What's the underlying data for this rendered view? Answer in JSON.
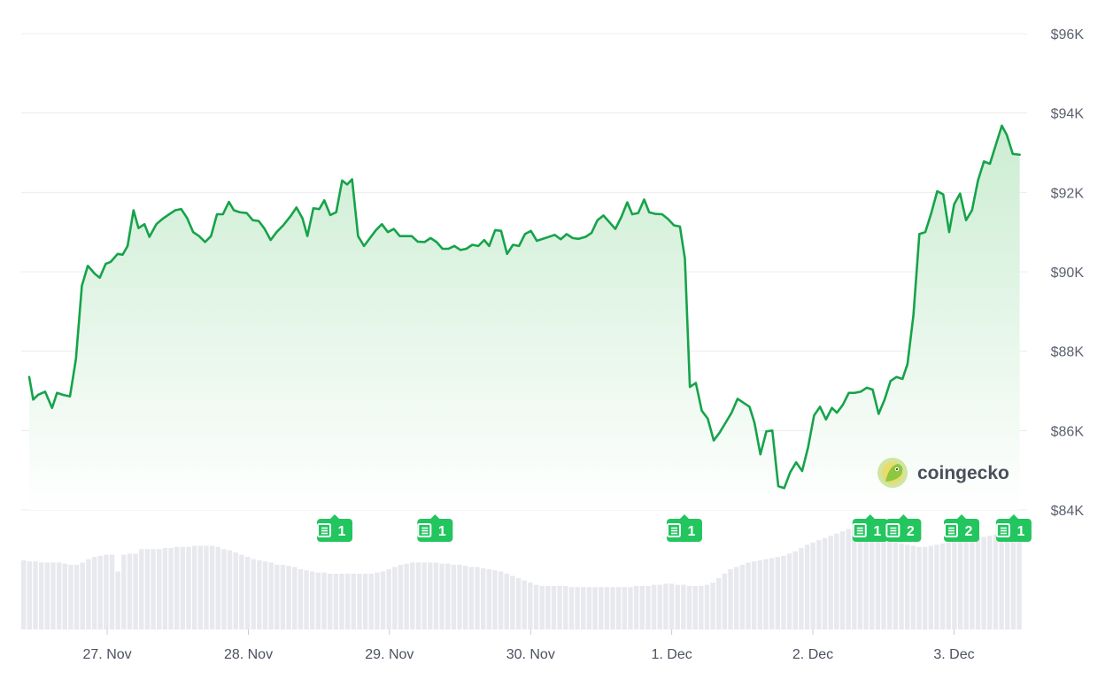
{
  "colors": {
    "line": "#16a34a",
    "area_top": "#c9ecd0",
    "area_bottom": "#ffffff",
    "grid": "#e9ecef",
    "volume": "#e8e9ee",
    "badge": "#22c55e",
    "tick_text": "#5b616e"
  },
  "brand": {
    "name": "coingecko",
    "icon": "gecko-logo-icon"
  },
  "chart_data": {
    "type": "area",
    "title": "",
    "xlabel": "",
    "ylabel": "",
    "x_range": [
      0,
      1
    ],
    "ylim": [
      84000,
      96000
    ],
    "grid": true,
    "y_ticks": [
      {
        "value": 96000,
        "label": "$96K"
      },
      {
        "value": 94000,
        "label": "$94K"
      },
      {
        "value": 92000,
        "label": "$92K"
      },
      {
        "value": 90000,
        "label": "$90K"
      },
      {
        "value": 88000,
        "label": "$88K"
      },
      {
        "value": 86000,
        "label": "$86K"
      },
      {
        "value": 84000,
        "label": "$84K"
      }
    ],
    "x_ticks": [
      {
        "pos": 0.0785,
        "label": "27. Nov"
      },
      {
        "pos": 0.2206,
        "label": "28. Nov"
      },
      {
        "pos": 0.3626,
        "label": "29. Nov"
      },
      {
        "pos": 0.5047,
        "label": "30. Nov"
      },
      {
        "pos": 0.6467,
        "label": "1. Dec"
      },
      {
        "pos": 0.7888,
        "label": "2. Dec"
      },
      {
        "pos": 0.9309,
        "label": "3. Dec"
      }
    ],
    "series": [
      {
        "values": [
          [
            0.0,
            87350
          ],
          [
            0.004,
            86780
          ],
          [
            0.009,
            86900
          ],
          [
            0.016,
            86980
          ],
          [
            0.023,
            86570
          ],
          [
            0.028,
            86950
          ],
          [
            0.034,
            86900
          ],
          [
            0.041,
            86860
          ],
          [
            0.047,
            87800
          ],
          [
            0.053,
            89650
          ],
          [
            0.059,
            90150
          ],
          [
            0.066,
            89950
          ],
          [
            0.071,
            89850
          ],
          [
            0.077,
            90200
          ],
          [
            0.082,
            90250
          ],
          [
            0.089,
            90450
          ],
          [
            0.094,
            90430
          ],
          [
            0.099,
            90650
          ],
          [
            0.105,
            91550
          ],
          [
            0.11,
            91100
          ],
          [
            0.116,
            91200
          ],
          [
            0.121,
            90880
          ],
          [
            0.128,
            91200
          ],
          [
            0.134,
            91330
          ],
          [
            0.141,
            91450
          ],
          [
            0.147,
            91550
          ],
          [
            0.153,
            91580
          ],
          [
            0.159,
            91350
          ],
          [
            0.165,
            91000
          ],
          [
            0.171,
            90900
          ],
          [
            0.177,
            90750
          ],
          [
            0.183,
            90900
          ],
          [
            0.189,
            91450
          ],
          [
            0.195,
            91450
          ],
          [
            0.201,
            91760
          ],
          [
            0.206,
            91550
          ],
          [
            0.212,
            91500
          ],
          [
            0.219,
            91480
          ],
          [
            0.225,
            91300
          ],
          [
            0.231,
            91280
          ],
          [
            0.237,
            91080
          ],
          [
            0.243,
            90800
          ],
          [
            0.249,
            91000
          ],
          [
            0.256,
            91180
          ],
          [
            0.263,
            91400
          ],
          [
            0.269,
            91620
          ],
          [
            0.275,
            91350
          ],
          [
            0.28,
            90900
          ],
          [
            0.286,
            91600
          ],
          [
            0.292,
            91580
          ],
          [
            0.297,
            91800
          ],
          [
            0.303,
            91430
          ],
          [
            0.309,
            91500
          ],
          [
            0.315,
            92300
          ],
          [
            0.32,
            92200
          ],
          [
            0.325,
            92330
          ],
          [
            0.331,
            90900
          ],
          [
            0.337,
            90650
          ],
          [
            0.343,
            90850
          ],
          [
            0.349,
            91050
          ],
          [
            0.355,
            91200
          ],
          [
            0.361,
            91000
          ],
          [
            0.367,
            91080
          ],
          [
            0.373,
            90900
          ],
          [
            0.379,
            90900
          ],
          [
            0.385,
            90900
          ],
          [
            0.391,
            90760
          ],
          [
            0.398,
            90750
          ],
          [
            0.404,
            90850
          ],
          [
            0.41,
            90750
          ],
          [
            0.416,
            90580
          ],
          [
            0.422,
            90580
          ],
          [
            0.428,
            90650
          ],
          [
            0.434,
            90550
          ],
          [
            0.44,
            90580
          ],
          [
            0.446,
            90680
          ],
          [
            0.452,
            90650
          ],
          [
            0.458,
            90800
          ],
          [
            0.463,
            90650
          ],
          [
            0.469,
            91050
          ],
          [
            0.475,
            91030
          ],
          [
            0.481,
            90450
          ],
          [
            0.487,
            90680
          ],
          [
            0.493,
            90650
          ],
          [
            0.499,
            90950
          ],
          [
            0.505,
            91030
          ],
          [
            0.511,
            90780
          ],
          [
            0.517,
            90830
          ],
          [
            0.523,
            90880
          ],
          [
            0.529,
            90930
          ],
          [
            0.535,
            90820
          ],
          [
            0.541,
            90950
          ],
          [
            0.547,
            90850
          ],
          [
            0.553,
            90830
          ],
          [
            0.56,
            90880
          ],
          [
            0.566,
            90980
          ],
          [
            0.572,
            91300
          ],
          [
            0.578,
            91420
          ],
          [
            0.584,
            91250
          ],
          [
            0.59,
            91080
          ],
          [
            0.596,
            91380
          ],
          [
            0.602,
            91750
          ],
          [
            0.607,
            91450
          ],
          [
            0.613,
            91480
          ],
          [
            0.619,
            91820
          ],
          [
            0.624,
            91500
          ],
          [
            0.63,
            91460
          ],
          [
            0.637,
            91450
          ],
          [
            0.643,
            91330
          ],
          [
            0.649,
            91170
          ],
          [
            0.655,
            91140
          ],
          [
            0.66,
            90330
          ],
          [
            0.665,
            87100
          ],
          [
            0.671,
            87200
          ],
          [
            0.677,
            86500
          ],
          [
            0.683,
            86300
          ],
          [
            0.689,
            85750
          ],
          [
            0.695,
            85950
          ],
          [
            0.701,
            86200
          ],
          [
            0.707,
            86450
          ],
          [
            0.713,
            86800
          ],
          [
            0.719,
            86700
          ],
          [
            0.725,
            86600
          ],
          [
            0.73,
            86200
          ],
          [
            0.736,
            85400
          ],
          [
            0.742,
            85980
          ],
          [
            0.748,
            86000
          ],
          [
            0.754,
            84600
          ],
          [
            0.76,
            84550
          ],
          [
            0.766,
            84950
          ],
          [
            0.772,
            85200
          ],
          [
            0.778,
            84980
          ],
          [
            0.784,
            85580
          ],
          [
            0.79,
            86380
          ],
          [
            0.796,
            86600
          ],
          [
            0.802,
            86280
          ],
          [
            0.808,
            86570
          ],
          [
            0.813,
            86450
          ],
          [
            0.819,
            86650
          ],
          [
            0.825,
            86950
          ],
          [
            0.831,
            86950
          ],
          [
            0.837,
            86980
          ],
          [
            0.843,
            87080
          ],
          [
            0.849,
            87030
          ],
          [
            0.855,
            86420
          ],
          [
            0.861,
            86780
          ],
          [
            0.867,
            87250
          ],
          [
            0.873,
            87350
          ],
          [
            0.879,
            87300
          ],
          [
            0.884,
            87670
          ],
          [
            0.89,
            88900
          ],
          [
            0.896,
            90950
          ],
          [
            0.902,
            91000
          ],
          [
            0.908,
            91480
          ],
          [
            0.914,
            92030
          ],
          [
            0.92,
            91950
          ],
          [
            0.926,
            91000
          ],
          [
            0.931,
            91700
          ],
          [
            0.937,
            91970
          ],
          [
            0.943,
            91300
          ],
          [
            0.949,
            91550
          ],
          [
            0.955,
            92300
          ],
          [
            0.961,
            92780
          ],
          [
            0.967,
            92720
          ],
          [
            0.973,
            93200
          ],
          [
            0.979,
            93680
          ],
          [
            0.984,
            93450
          ],
          [
            0.99,
            92970
          ],
          [
            0.997,
            92950
          ]
        ]
      }
    ],
    "volume": [
      0.62,
      0.61,
      0.61,
      0.6,
      0.6,
      0.6,
      0.6,
      0.59,
      0.58,
      0.58,
      0.6,
      0.63,
      0.65,
      0.66,
      0.67,
      0.67,
      0.52,
      0.67,
      0.68,
      0.68,
      0.72,
      0.72,
      0.72,
      0.72,
      0.73,
      0.73,
      0.74,
      0.74,
      0.74,
      0.75,
      0.75,
      0.75,
      0.75,
      0.74,
      0.72,
      0.71,
      0.69,
      0.67,
      0.65,
      0.63,
      0.62,
      0.61,
      0.6,
      0.58,
      0.58,
      0.57,
      0.56,
      0.54,
      0.53,
      0.52,
      0.51,
      0.51,
      0.5,
      0.5,
      0.5,
      0.5,
      0.5,
      0.5,
      0.5,
      0.5,
      0.51,
      0.52,
      0.54,
      0.56,
      0.58,
      0.59,
      0.6,
      0.6,
      0.6,
      0.6,
      0.6,
      0.59,
      0.59,
      0.58,
      0.58,
      0.57,
      0.56,
      0.56,
      0.55,
      0.54,
      0.53,
      0.52,
      0.5,
      0.48,
      0.46,
      0.44,
      0.42,
      0.4,
      0.39,
      0.39,
      0.39,
      0.39,
      0.39,
      0.38,
      0.38,
      0.38,
      0.38,
      0.38,
      0.38,
      0.38,
      0.38,
      0.38,
      0.38,
      0.38,
      0.39,
      0.39,
      0.39,
      0.4,
      0.4,
      0.41,
      0.41,
      0.4,
      0.4,
      0.39,
      0.39,
      0.39,
      0.4,
      0.42,
      0.46,
      0.5,
      0.54,
      0.56,
      0.58,
      0.6,
      0.61,
      0.62,
      0.63,
      0.64,
      0.65,
      0.66,
      0.68,
      0.7,
      0.73,
      0.76,
      0.78,
      0.8,
      0.82,
      0.84,
      0.86,
      0.88,
      0.9,
      0.9,
      0.88,
      0.86,
      0.85,
      0.84,
      0.82,
      0.8,
      0.78,
      0.77,
      0.76,
      0.75,
      0.74,
      0.74,
      0.75,
      0.76,
      0.77,
      0.78,
      0.79,
      0.8,
      0.8,
      0.81,
      0.82,
      0.83,
      0.84,
      0.85,
      0.86,
      0.86,
      0.85,
      0.86
    ],
    "news_markers": [
      {
        "pos": 0.3075,
        "count": "1"
      },
      {
        "pos": 0.4085,
        "count": "1"
      },
      {
        "pos": 0.6595,
        "count": "1"
      },
      {
        "pos": 0.8465,
        "count": "1"
      },
      {
        "pos": 0.88,
        "count": "2"
      },
      {
        "pos": 0.9385,
        "count": "2"
      },
      {
        "pos": 0.991,
        "count": "1"
      }
    ]
  }
}
